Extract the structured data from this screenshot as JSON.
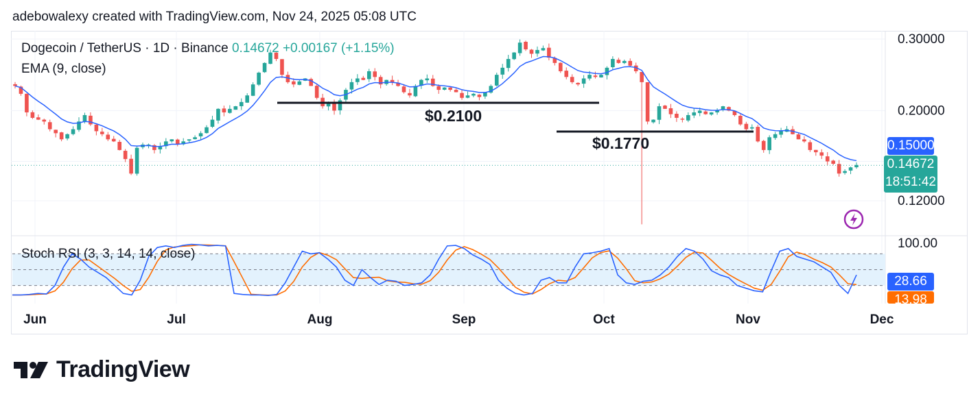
{
  "caption": "adebowalexy created with TradingView.com, Nov 24, 2025 05:08 UTC",
  "legend": {
    "symbol": "Dogecoin / TetherUS · 1D · Binance",
    "price": "0.14672",
    "change": "+0.00167 (+1.15%)",
    "indicator": "EMA (9, close)"
  },
  "rsi_label": "Stoch RSI (3, 3, 14, 14, close)",
  "price_tags": {
    "ema": "0.15000",
    "last": "0.14672",
    "countdown": "18:51:42",
    "rsi_k": "28.66",
    "rsi_d": "13.98"
  },
  "annotations": {
    "support_upper": "$0.2100",
    "support_lower": "$0.1770"
  },
  "logo_text": "TradingView",
  "colors": {
    "up": "#26a69a",
    "down": "#ef5350",
    "ema": "#2962ff",
    "rsi_k": "#2962ff",
    "rsi_d": "#ff6d00",
    "rsi_band": "#e3f2fd"
  },
  "chart_data": {
    "type": "candlestick",
    "x_axis_labels": [
      "Jun",
      "Jul",
      "Aug",
      "Sep",
      "Oct",
      "Nov",
      "Dec"
    ],
    "y_axis_labels": [
      "0.30000",
      "0.20000",
      "0.12000"
    ],
    "y_scale": "log",
    "price_path": [
      0.23,
      0.22,
      0.198,
      0.192,
      0.19,
      0.188,
      0.18,
      0.176,
      0.17,
      0.175,
      0.18,
      0.188,
      0.195,
      0.185,
      0.178,
      0.175,
      0.17,
      0.168,
      0.16,
      0.152,
      0.14,
      0.162,
      0.165,
      0.165,
      0.16,
      0.163,
      0.168,
      0.17,
      0.165,
      0.168,
      0.17,
      0.172,
      0.176,
      0.182,
      0.19,
      0.202,
      0.198,
      0.202,
      0.205,
      0.21,
      0.218,
      0.232,
      0.248,
      0.262,
      0.278,
      0.268,
      0.245,
      0.235,
      0.232,
      0.236,
      0.24,
      0.23,
      0.215,
      0.205,
      0.21,
      0.2,
      0.212,
      0.225,
      0.235,
      0.24,
      0.238,
      0.25,
      0.242,
      0.232,
      0.238,
      0.235,
      0.23,
      0.222,
      0.218,
      0.23,
      0.238,
      0.24,
      0.23,
      0.225,
      0.228,
      0.225,
      0.222,
      0.215,
      0.218,
      0.22,
      0.216,
      0.222,
      0.23,
      0.245,
      0.255,
      0.268,
      0.278,
      0.294,
      0.283,
      0.276,
      0.282,
      0.285,
      0.27,
      0.262,
      0.25,
      0.242,
      0.235,
      0.232,
      0.24,
      0.245,
      0.242,
      0.245,
      0.255,
      0.268,
      0.262,
      0.265,
      0.258,
      0.25,
      0.235,
      0.188,
      0.19,
      0.205,
      0.202,
      0.196,
      0.192,
      0.19,
      0.195,
      0.198,
      0.2,
      0.196,
      0.198,
      0.2,
      0.205,
      0.2,
      0.195,
      0.185,
      0.18,
      0.182,
      0.168,
      0.16,
      0.172,
      0.175,
      0.178,
      0.18,
      0.175,
      0.17,
      0.168,
      0.16,
      0.158,
      0.155,
      0.15,
      0.148,
      0.14,
      0.142,
      0.145,
      0.147
    ],
    "support_levels": [
      {
        "label": "$0.2100",
        "value": 0.21,
        "x_from": "Jul 25",
        "x_to": "Sep 29"
      },
      {
        "label": "$0.1770",
        "value": 0.177,
        "x_from": "Sep 27",
        "x_to": "Nov 1"
      }
    ],
    "last_price": 0.14672,
    "ema_value": 0.15,
    "stoch_rsi": {
      "range": [
        0,
        100
      ],
      "levels": [
        80,
        20
      ],
      "axis_label": "100.00",
      "k_last": 28.66,
      "d_last": 13.98
    }
  }
}
